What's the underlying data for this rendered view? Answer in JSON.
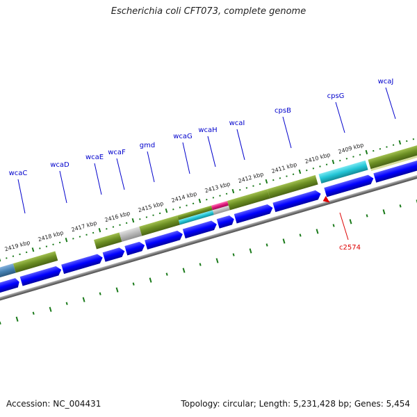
{
  "title": "Escherichia coli CFT073, complete genome",
  "footer": {
    "accession": "Accession: NC_004431",
    "summary": "Topology: circular; Length: 5,231,428 bp; Genes: 5,454"
  },
  "colors": {
    "cds": "#0000ff",
    "cog_olive": "#6b8e23",
    "cog_cyan": "#22c5d6",
    "cog_gray": "#b8b8b8",
    "cog_magenta": "#e0197d",
    "cog_steel": "#4682b4",
    "backbone": "#7a7a7a",
    "ticks": "#1a7a1a",
    "gene_label": "#0000cc",
    "highlight": "#dd0000"
  },
  "kbp_labels": [
    "2419 kbp",
    "2418 kbp",
    "2417 kbp",
    "2416 kbp",
    "2415 kbp",
    "2414 kbp",
    "2413 kbp",
    "2412 kbp",
    "2411 kbp",
    "2410 kbp",
    "2409 kbp"
  ],
  "gene_labels": [
    "wcaC",
    "wcaD",
    "wcaE",
    "wcaF",
    "gmd",
    "wcaG",
    "wcaH",
    "wcaI",
    "cpsB",
    "cpsG",
    "wcaJ"
  ],
  "highlight_label": "c2574"
}
